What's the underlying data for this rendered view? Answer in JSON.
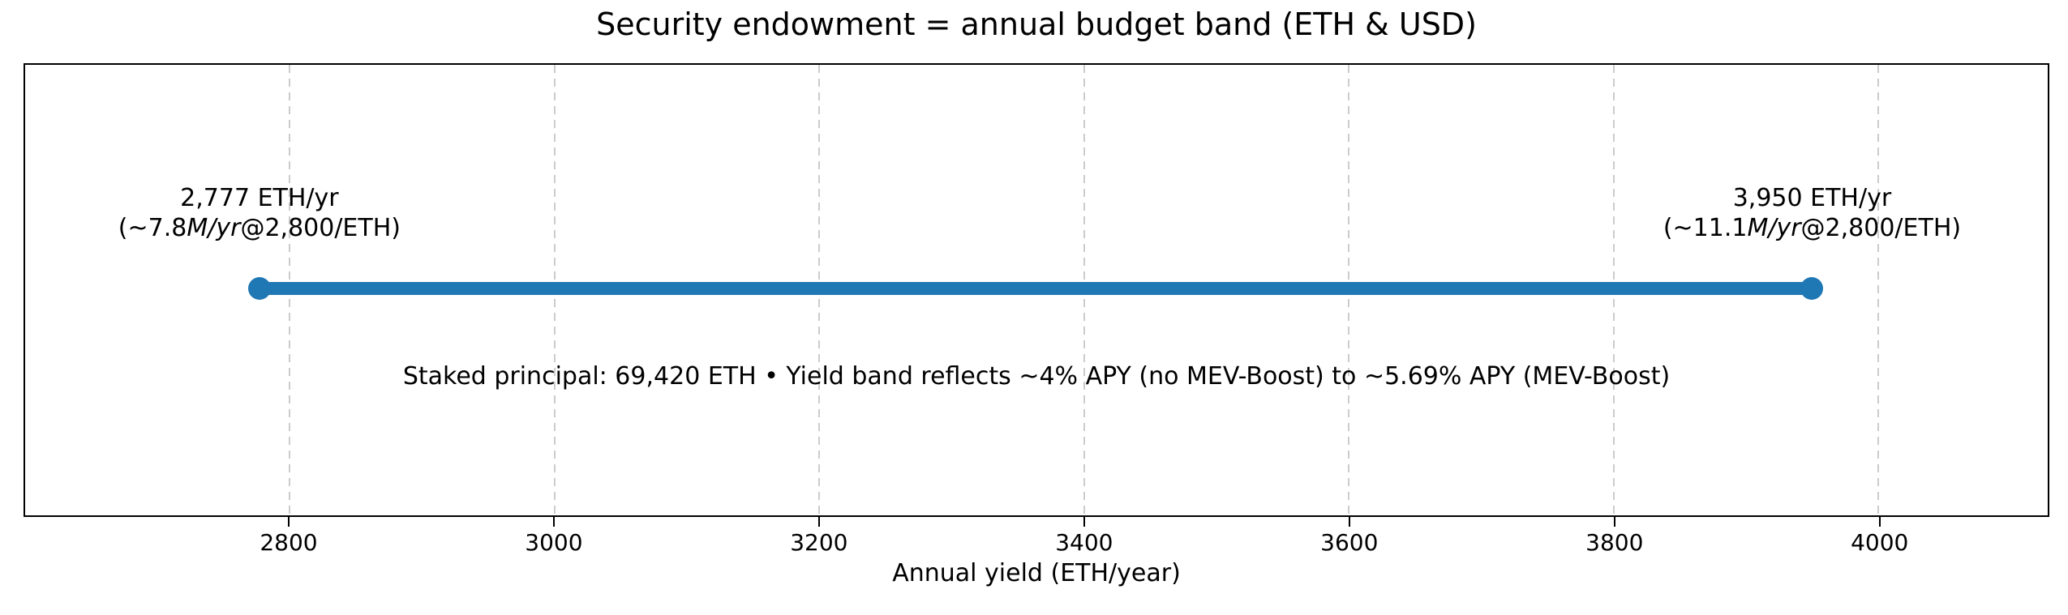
{
  "chart_data": {
    "type": "line",
    "subtype": "horizontal-range-dumbbell",
    "title": "Security endowment = annual budget band (ETH & USD)",
    "xlabel": "Annual yield (ETH/year)",
    "ylabel": "",
    "xlim": [
      2600,
      4128
    ],
    "xticks": [
      2800,
      3000,
      3200,
      3400,
      3600,
      3800,
      4000
    ],
    "grid": "vertical dashed gridlines at each x tick",
    "legend": "none",
    "annotation": "Staked principal: 69,420 ETH • Yield band reflects ~4% APY (no MEV-Boost) to ~5.69% APY (MEV-Boost)",
    "series": [
      {
        "name": "annual budget band",
        "color": "#1f77b4",
        "points": [
          {
            "x": 2777,
            "label_line1": "2,777 ETH/yr",
            "label_line2_pre": "(~7.8",
            "label_line2_italic": "M/yr",
            "label_line2_post": "@2,800/ETH)"
          },
          {
            "x": 3950,
            "label_line1": "3,950 ETH/yr",
            "label_line2_pre": "(~11.1",
            "label_line2_italic": "M/yr",
            "label_line2_post": "@2,800/ETH)"
          }
        ]
      }
    ]
  },
  "colors": {
    "band": "#1f77b4",
    "grid": "#cccccc",
    "text": "#000000",
    "background": "#ffffff"
  }
}
